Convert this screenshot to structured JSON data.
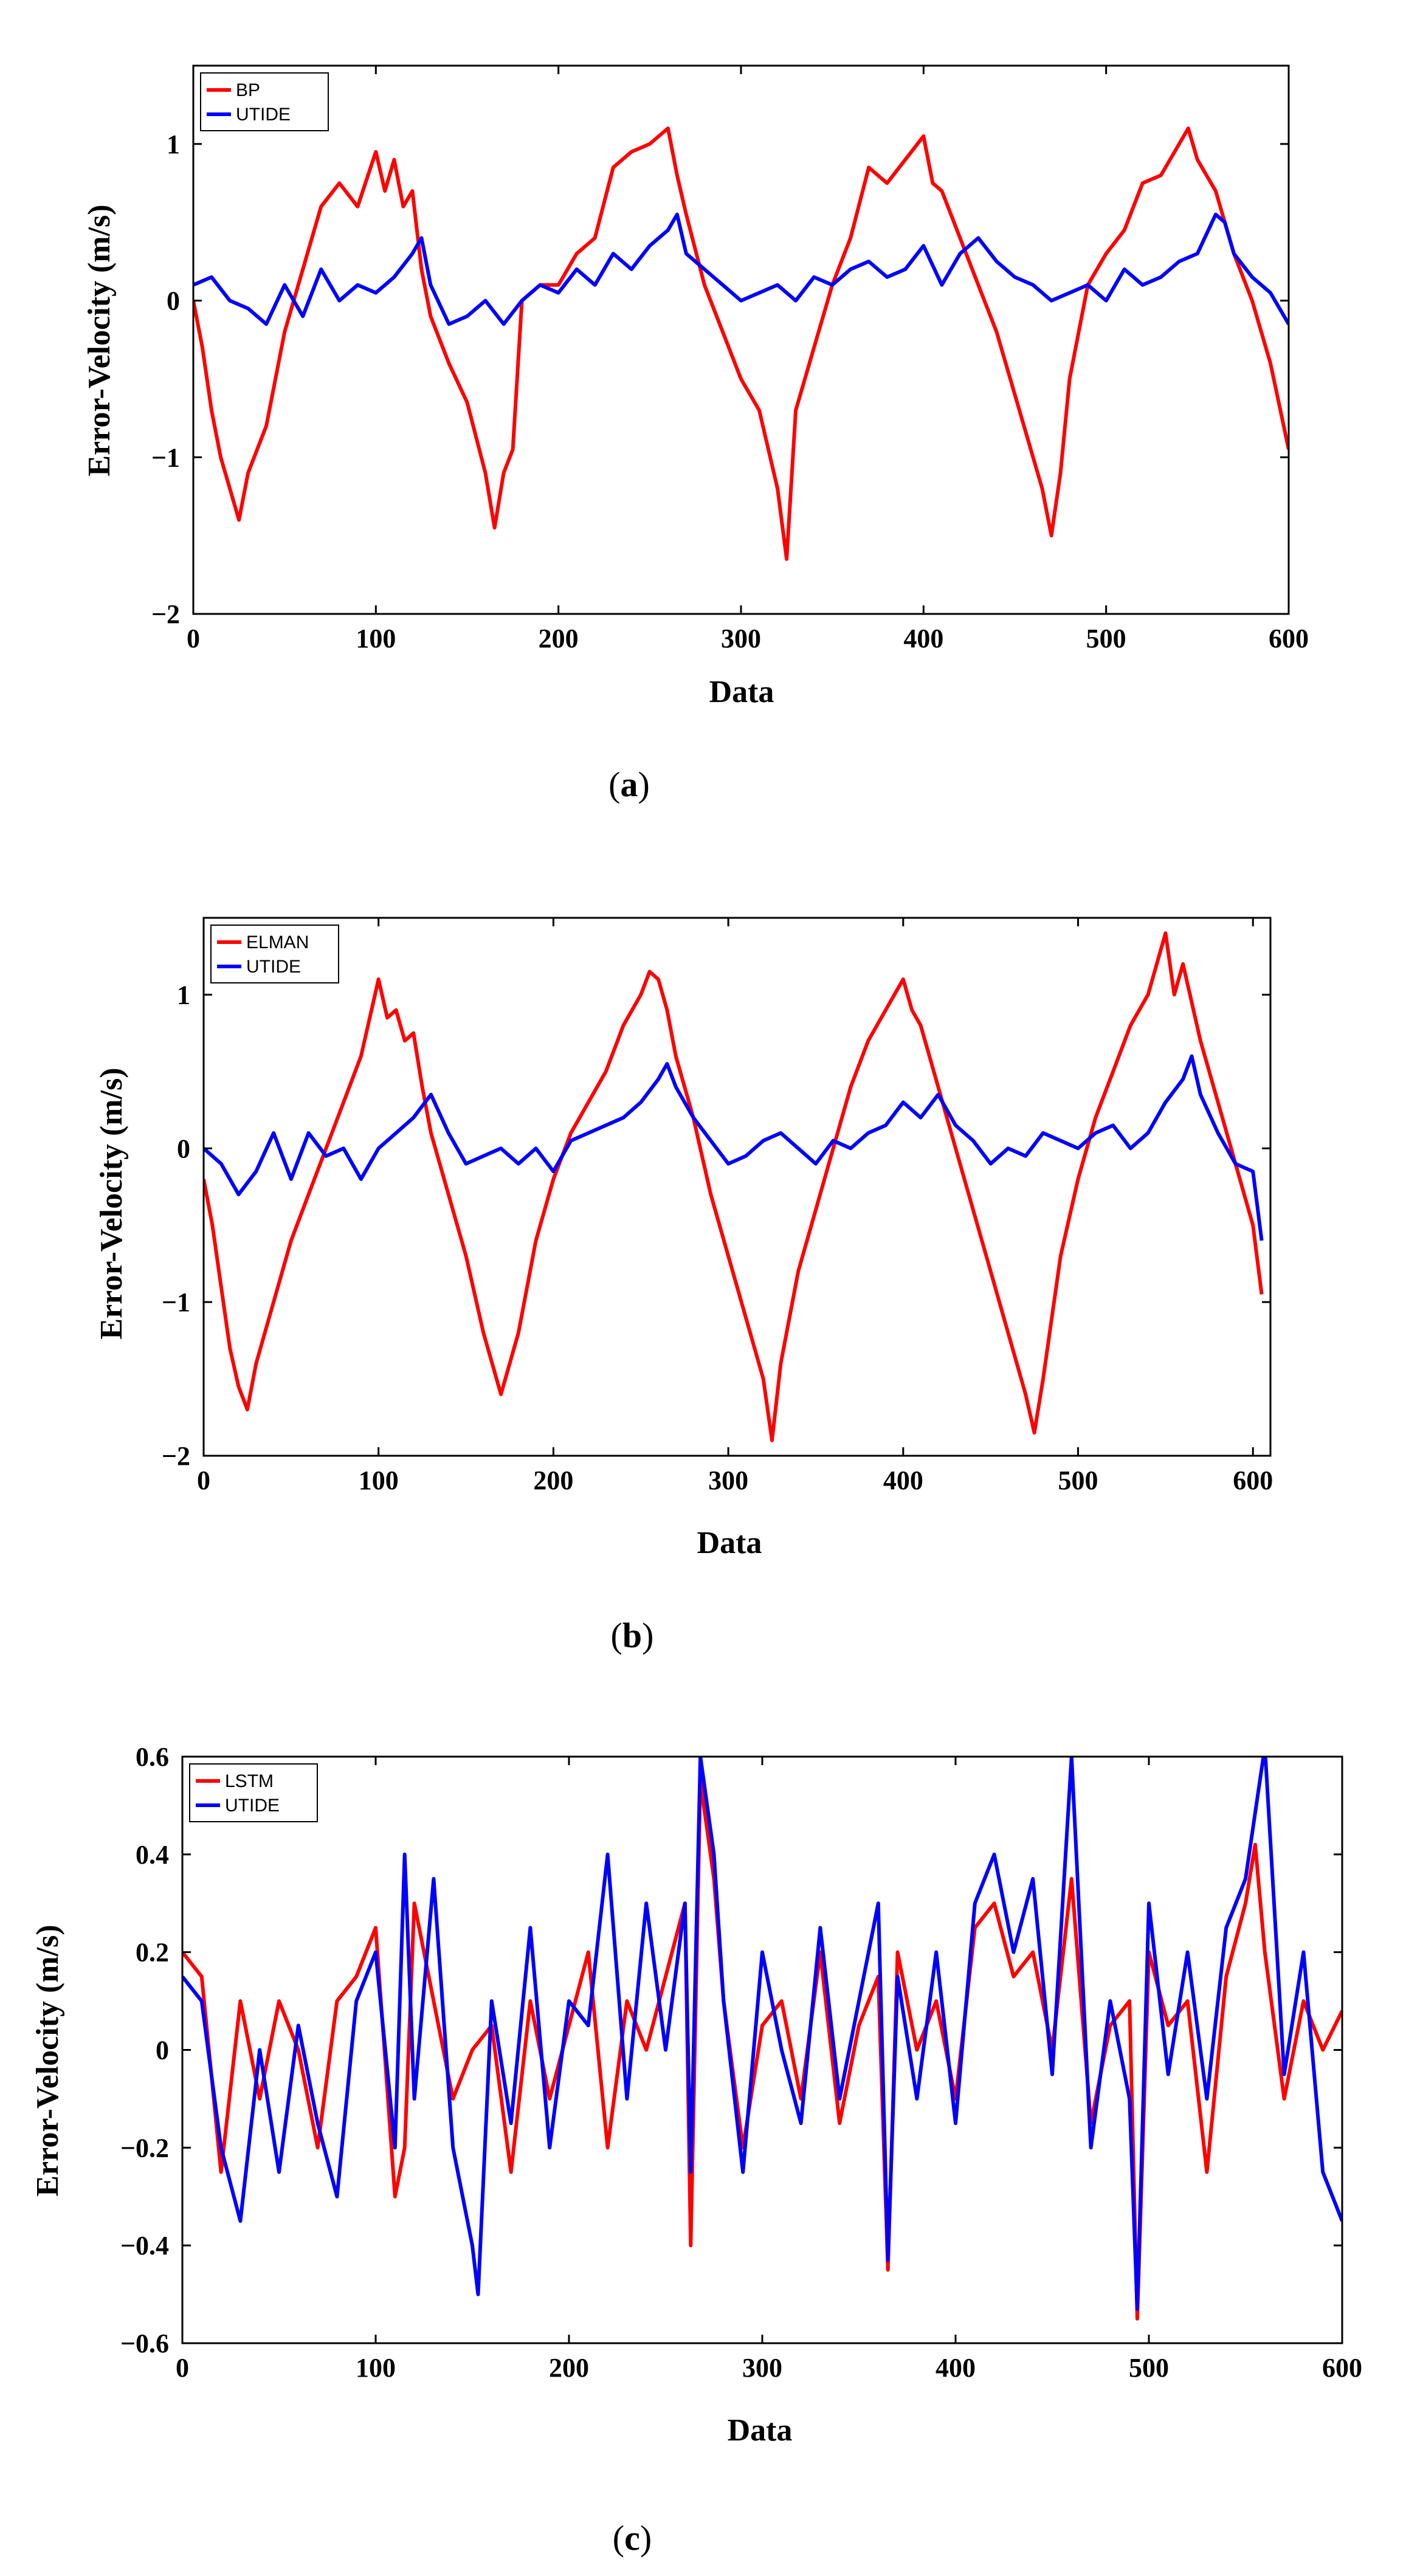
{
  "chart_data": [
    {
      "type": "line",
      "caption_letter": "a",
      "xlabel": "Data",
      "ylabel": "Error-Velocity (m/s)",
      "xlim": [
        0,
        600
      ],
      "ylim": [
        -2,
        1.5
      ],
      "xticks": [
        0,
        100,
        200,
        300,
        400,
        500,
        600
      ],
      "yticks": [
        -2,
        -1,
        0,
        1
      ],
      "ytick_labels": [
        "−2",
        "−1",
        "0",
        "1"
      ],
      "legend_position": "top-left",
      "series": [
        {
          "name": "BP",
          "color": "#ff0000",
          "x": [
            0,
            5,
            10,
            15,
            20,
            25,
            30,
            40,
            50,
            60,
            70,
            80,
            90,
            100,
            105,
            110,
            115,
            120,
            125,
            130,
            140,
            150,
            160,
            165,
            170,
            175,
            180,
            190,
            200,
            210,
            220,
            230,
            240,
            250,
            260,
            265,
            270,
            280,
            290,
            300,
            310,
            320,
            325,
            330,
            340,
            350,
            360,
            370,
            380,
            390,
            400,
            405,
            410,
            420,
            430,
            440,
            450,
            460,
            465,
            470,
            475,
            480,
            490,
            500,
            510,
            520,
            530,
            540,
            545,
            550,
            560,
            570,
            580,
            590,
            600
          ],
          "values": [
            0.0,
            -0.3,
            -0.7,
            -1.0,
            -1.2,
            -1.4,
            -1.1,
            -0.8,
            -0.2,
            0.2,
            0.6,
            0.75,
            0.6,
            0.95,
            0.7,
            0.9,
            0.6,
            0.7,
            0.2,
            -0.1,
            -0.4,
            -0.65,
            -1.1,
            -1.45,
            -1.1,
            -0.95,
            0.0,
            0.1,
            0.1,
            0.3,
            0.4,
            0.85,
            0.95,
            1.0,
            1.1,
            0.8,
            0.55,
            0.1,
            -0.2,
            -0.5,
            -0.7,
            -1.2,
            -1.65,
            -0.7,
            -0.3,
            0.1,
            0.4,
            0.85,
            0.75,
            0.9,
            1.05,
            0.75,
            0.7,
            0.4,
            0.1,
            -0.2,
            -0.6,
            -1.0,
            -1.2,
            -1.5,
            -1.1,
            -0.5,
            0.1,
            0.3,
            0.45,
            0.75,
            0.8,
            1.0,
            1.1,
            0.9,
            0.7,
            0.3,
            0.0,
            -0.4,
            -0.95
          ]
        },
        {
          "name": "UTIDE",
          "color": "#0000ff",
          "x": [
            0,
            10,
            20,
            30,
            40,
            50,
            60,
            70,
            80,
            90,
            100,
            110,
            120,
            125,
            130,
            140,
            150,
            160,
            170,
            180,
            190,
            200,
            210,
            220,
            230,
            240,
            250,
            260,
            265,
            270,
            280,
            290,
            300,
            310,
            320,
            330,
            340,
            350,
            360,
            370,
            380,
            390,
            400,
            410,
            420,
            430,
            440,
            450,
            460,
            470,
            480,
            490,
            500,
            510,
            520,
            530,
            540,
            550,
            560,
            565,
            570,
            580,
            590,
            600
          ],
          "values": [
            0.1,
            0.15,
            0.0,
            -0.05,
            -0.15,
            0.1,
            -0.1,
            0.2,
            0.0,
            0.1,
            0.05,
            0.15,
            0.3,
            0.4,
            0.1,
            -0.15,
            -0.1,
            0.0,
            -0.15,
            0.0,
            0.1,
            0.05,
            0.2,
            0.1,
            0.3,
            0.2,
            0.35,
            0.45,
            0.55,
            0.3,
            0.2,
            0.1,
            0.0,
            0.05,
            0.1,
            0.0,
            0.15,
            0.1,
            0.2,
            0.25,
            0.15,
            0.2,
            0.35,
            0.1,
            0.3,
            0.4,
            0.25,
            0.15,
            0.1,
            0.0,
            0.05,
            0.1,
            0.0,
            0.2,
            0.1,
            0.15,
            0.25,
            0.3,
            0.55,
            0.5,
            0.3,
            0.15,
            0.05,
            -0.15
          ]
        }
      ]
    },
    {
      "type": "line",
      "caption_letter": "b",
      "xlabel": "Data",
      "ylabel": "Error-Velocity (m/s)",
      "xlim": [
        0,
        610
      ],
      "ylim": [
        -2,
        1.5
      ],
      "xticks": [
        0,
        100,
        200,
        300,
        400,
        500,
        600
      ],
      "yticks": [
        -2,
        -1,
        0,
        1
      ],
      "ytick_labels": [
        "−2",
        "−1",
        "0",
        "1"
      ],
      "legend_position": "top-left",
      "series": [
        {
          "name": "ELMAN",
          "color": "#ff0000",
          "x": [
            0,
            5,
            10,
            15,
            20,
            25,
            30,
            40,
            50,
            60,
            70,
            80,
            90,
            100,
            105,
            110,
            115,
            120,
            125,
            130,
            140,
            150,
            160,
            170,
            175,
            180,
            190,
            200,
            210,
            220,
            230,
            240,
            250,
            255,
            260,
            265,
            270,
            280,
            290,
            300,
            310,
            320,
            325,
            330,
            340,
            350,
            360,
            370,
            380,
            390,
            400,
            405,
            410,
            420,
            430,
            440,
            450,
            460,
            470,
            475,
            480,
            490,
            500,
            510,
            520,
            530,
            540,
            545,
            550,
            555,
            560,
            570,
            580,
            590,
            600,
            605
          ],
          "values": [
            -0.2,
            -0.5,
            -0.9,
            -1.3,
            -1.55,
            -1.7,
            -1.4,
            -1.0,
            -0.6,
            -0.3,
            0.0,
            0.3,
            0.6,
            1.1,
            0.85,
            0.9,
            0.7,
            0.75,
            0.4,
            0.1,
            -0.3,
            -0.7,
            -1.2,
            -1.6,
            -1.4,
            -1.2,
            -0.6,
            -0.2,
            0.1,
            0.3,
            0.5,
            0.8,
            1.0,
            1.15,
            1.1,
            0.9,
            0.6,
            0.2,
            -0.3,
            -0.7,
            -1.1,
            -1.5,
            -1.9,
            -1.4,
            -0.8,
            -0.4,
            0.0,
            0.4,
            0.7,
            0.9,
            1.1,
            0.9,
            0.8,
            0.4,
            0.0,
            -0.4,
            -0.8,
            -1.2,
            -1.6,
            -1.85,
            -1.5,
            -0.7,
            -0.2,
            0.2,
            0.5,
            0.8,
            1.0,
            1.2,
            1.4,
            1.0,
            1.2,
            0.7,
            0.3,
            -0.1,
            -0.5,
            -0.95
          ]
        },
        {
          "name": "UTIDE",
          "color": "#0000ff",
          "x": [
            0,
            10,
            20,
            30,
            40,
            50,
            60,
            70,
            80,
            90,
            100,
            110,
            120,
            130,
            140,
            150,
            160,
            170,
            180,
            190,
            200,
            210,
            220,
            230,
            240,
            250,
            260,
            265,
            270,
            280,
            290,
            300,
            310,
            320,
            330,
            340,
            350,
            360,
            370,
            380,
            390,
            400,
            410,
            420,
            430,
            440,
            450,
            460,
            470,
            480,
            490,
            500,
            510,
            520,
            530,
            540,
            550,
            560,
            565,
            570,
            580,
            590,
            600,
            605
          ],
          "values": [
            0.0,
            -0.1,
            -0.3,
            -0.15,
            0.1,
            -0.2,
            0.1,
            -0.05,
            0.0,
            -0.2,
            0.0,
            0.1,
            0.2,
            0.35,
            0.1,
            -0.1,
            -0.05,
            0.0,
            -0.1,
            0.0,
            -0.15,
            0.05,
            0.1,
            0.15,
            0.2,
            0.3,
            0.45,
            0.55,
            0.4,
            0.2,
            0.05,
            -0.1,
            -0.05,
            0.05,
            0.1,
            0.0,
            -0.1,
            0.05,
            0.0,
            0.1,
            0.15,
            0.3,
            0.2,
            0.35,
            0.15,
            0.05,
            -0.1,
            0.0,
            -0.05,
            0.1,
            0.05,
            0.0,
            0.1,
            0.15,
            0.0,
            0.1,
            0.3,
            0.45,
            0.6,
            0.35,
            0.1,
            -0.1,
            -0.15,
            -0.6
          ]
        }
      ]
    },
    {
      "type": "line",
      "caption_letter": "c",
      "xlabel": "Data",
      "ylabel": "Error-Velocity (m/s)",
      "xlim": [
        0,
        600
      ],
      "ylim": [
        -0.6,
        0.6
      ],
      "xticks": [
        0,
        100,
        200,
        300,
        400,
        500,
        600
      ],
      "yticks": [
        -0.6,
        -0.4,
        -0.2,
        0,
        0.2,
        0.4,
        0.6
      ],
      "ytick_labels": [
        "−0.6",
        "−0.4",
        "−0.2",
        "0",
        "0.2",
        "0.4",
        "0.6"
      ],
      "legend_position": "top-left",
      "series": [
        {
          "name": "LSTM",
          "color": "#ff0000",
          "x": [
            0,
            10,
            20,
            30,
            40,
            50,
            60,
            70,
            80,
            90,
            100,
            110,
            115,
            120,
            130,
            140,
            150,
            160,
            170,
            180,
            190,
            200,
            210,
            220,
            230,
            240,
            250,
            260,
            263,
            268,
            275,
            280,
            290,
            300,
            310,
            320,
            330,
            340,
            350,
            360,
            365,
            370,
            380,
            390,
            400,
            410,
            420,
            430,
            440,
            450,
            460,
            470,
            480,
            490,
            494,
            500,
            510,
            520,
            530,
            540,
            550,
            555,
            560,
            570,
            580,
            590,
            600
          ],
          "values": [
            0.2,
            0.15,
            -0.25,
            0.1,
            -0.1,
            0.1,
            0.0,
            -0.2,
            0.1,
            0.15,
            0.25,
            -0.3,
            -0.2,
            0.3,
            0.1,
            -0.1,
            0.0,
            0.05,
            -0.25,
            0.1,
            -0.1,
            0.05,
            0.2,
            -0.2,
            0.1,
            0.0,
            0.15,
            0.3,
            -0.4,
            0.55,
            0.35,
            0.1,
            -0.2,
            0.05,
            0.1,
            -0.1,
            0.2,
            -0.15,
            0.05,
            0.15,
            -0.45,
            0.2,
            0.0,
            0.1,
            -0.1,
            0.25,
            0.3,
            0.15,
            0.2,
            0.0,
            0.35,
            -0.15,
            0.05,
            0.1,
            -0.55,
            0.2,
            0.05,
            0.1,
            -0.25,
            0.15,
            0.3,
            0.42,
            0.2,
            -0.1,
            0.1,
            0.0,
            0.08
          ]
        },
        {
          "name": "UTIDE",
          "color": "#0000ff",
          "x": [
            0,
            10,
            20,
            30,
            40,
            50,
            60,
            70,
            80,
            90,
            100,
            110,
            115,
            120,
            130,
            140,
            150,
            153,
            160,
            170,
            180,
            190,
            200,
            210,
            220,
            230,
            240,
            250,
            260,
            263,
            268,
            275,
            280,
            290,
            300,
            310,
            320,
            330,
            340,
            350,
            360,
            365,
            370,
            380,
            390,
            400,
            410,
            420,
            430,
            440,
            450,
            460,
            470,
            480,
            490,
            494,
            500,
            510,
            520,
            530,
            540,
            550,
            560,
            570,
            580,
            590,
            600
          ],
          "values": [
            0.15,
            0.1,
            -0.2,
            -0.35,
            0.0,
            -0.25,
            0.05,
            -0.15,
            -0.3,
            0.1,
            0.2,
            -0.2,
            0.4,
            -0.1,
            0.35,
            -0.2,
            -0.4,
            -0.5,
            0.1,
            -0.15,
            0.25,
            -0.2,
            0.1,
            0.05,
            0.4,
            -0.1,
            0.3,
            0.0,
            0.3,
            -0.25,
            0.6,
            0.4,
            0.1,
            -0.25,
            0.2,
            0.0,
            -0.15,
            0.25,
            -0.1,
            0.1,
            0.3,
            -0.43,
            0.15,
            -0.1,
            0.2,
            -0.15,
            0.3,
            0.4,
            0.2,
            0.35,
            -0.05,
            0.6,
            -0.2,
            0.1,
            -0.1,
            -0.53,
            0.3,
            -0.05,
            0.2,
            -0.1,
            0.25,
            0.35,
            0.62,
            -0.05,
            0.2,
            -0.25,
            -0.35
          ]
        }
      ]
    }
  ]
}
